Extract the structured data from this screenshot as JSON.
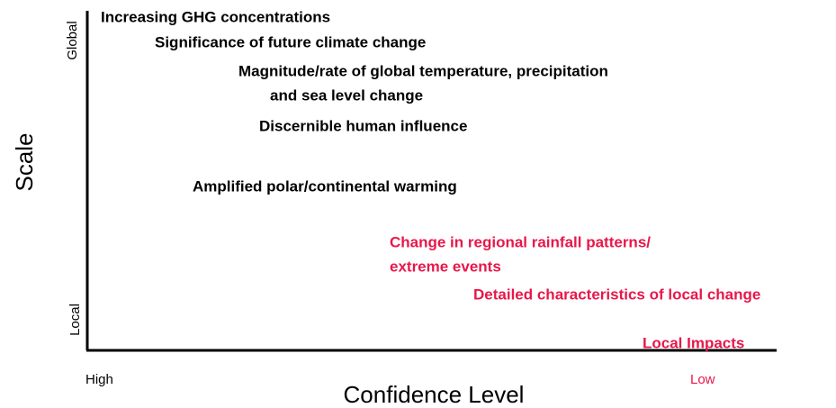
{
  "y_axis": {
    "label": "Scale",
    "top": "Global",
    "bottom": "Local"
  },
  "x_axis": {
    "label": "Confidence Level",
    "left": "High",
    "right": "Low",
    "right_color": "#e8174a"
  },
  "items": [
    {
      "lines": [
        "Increasing GHG concentrations"
      ],
      "color": "#000000"
    },
    {
      "lines": [
        "Significance of future climate change"
      ],
      "color": "#000000"
    },
    {
      "lines": [
        "Magnitude/rate of global temperature, precipitation",
        "and sea level change"
      ],
      "color": "#000000"
    },
    {
      "lines": [
        "Discernible human influence"
      ],
      "color": "#000000"
    },
    {
      "lines": [
        "Amplified polar/continental warming"
      ],
      "color": "#000000"
    },
    {
      "lines": [
        "Change in regional rainfall patterns/",
        "extreme events"
      ],
      "color": "#e8174a"
    },
    {
      "lines": [
        "Detailed characteristics of local change"
      ],
      "color": "#e8174a"
    },
    {
      "lines": [
        "Local Impacts"
      ],
      "color": "#e8174a"
    }
  ]
}
